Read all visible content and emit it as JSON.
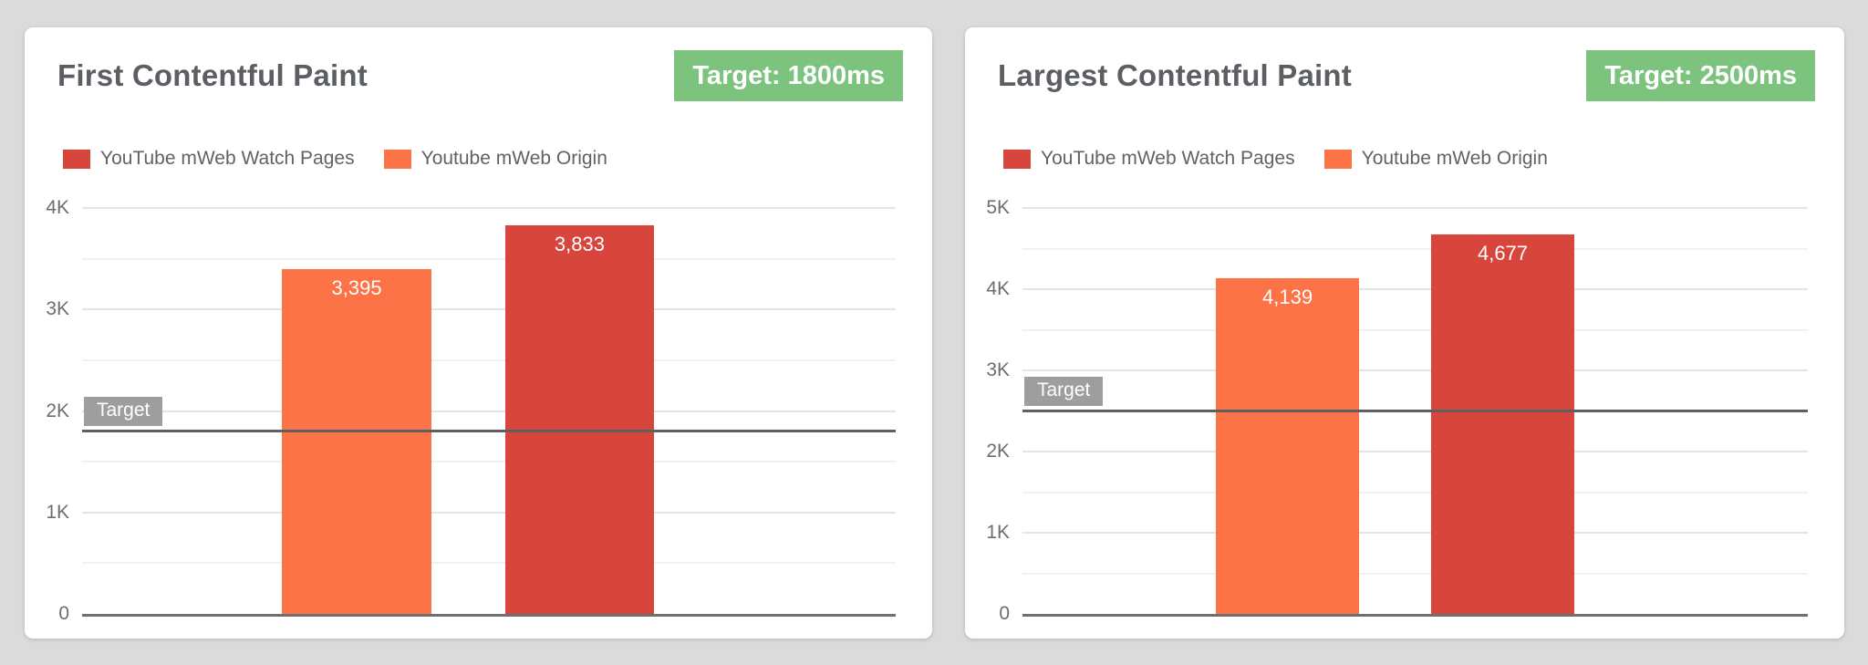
{
  "page": {
    "background_color": "#dbdbdb",
    "card_color": "#ffffff"
  },
  "colors": {
    "watch_pages_red": "#d8453c",
    "origin_orange": "#fb7347",
    "target_badge_green": "#7cc47e",
    "target_chip_gray": "#9e9e9e",
    "target_line_gray": "#5f5f5f"
  },
  "cards": [
    {
      "title": "First Contentful Paint",
      "badge": "Target: 1800ms",
      "legend": [
        {
          "label": "YouTube mWeb Watch Pages",
          "color": "#d8453c"
        },
        {
          "label": "Youtube mWeb Origin",
          "color": "#fb7347"
        }
      ]
    },
    {
      "title": "Largest Contentful Paint",
      "badge": "Target: 2500ms",
      "legend": [
        {
          "label": "YouTube mWeb Watch Pages",
          "color": "#d8453c"
        },
        {
          "label": "Youtube mWeb Origin",
          "color": "#fb7347"
        }
      ]
    }
  ],
  "chart_data": [
    {
      "type": "bar",
      "title": "First Contentful Paint",
      "categories": [
        "Youtube mWeb Origin",
        "YouTube mWeb Watch Pages"
      ],
      "values": [
        3395,
        3833
      ],
      "value_labels": [
        "3,395",
        "3,833"
      ],
      "bar_colors": [
        "#fb7347",
        "#d8453c"
      ],
      "ylim": [
        0,
        4000
      ],
      "yticks": [
        {
          "value": 0,
          "label": "0"
        },
        {
          "value": 1000,
          "label": "1K"
        },
        {
          "value": 2000,
          "label": "2K"
        },
        {
          "value": 3000,
          "label": "3K"
        },
        {
          "value": 4000,
          "label": "4K"
        }
      ],
      "grid_step": 500,
      "grid": true,
      "legend_position": "top",
      "target": {
        "value": 1800,
        "label": "Target",
        "badge": "Target: 1800ms"
      }
    },
    {
      "type": "bar",
      "title": "Largest Contentful Paint",
      "categories": [
        "Youtube mWeb Origin",
        "YouTube mWeb Watch Pages"
      ],
      "values": [
        4139,
        4677
      ],
      "value_labels": [
        "4,139",
        "4,677"
      ],
      "bar_colors": [
        "#fb7347",
        "#d8453c"
      ],
      "ylim": [
        0,
        5000
      ],
      "yticks": [
        {
          "value": 0,
          "label": "0"
        },
        {
          "value": 1000,
          "label": "1K"
        },
        {
          "value": 2000,
          "label": "2K"
        },
        {
          "value": 3000,
          "label": "3K"
        },
        {
          "value": 4000,
          "label": "4K"
        },
        {
          "value": 5000,
          "label": "5K"
        }
      ],
      "grid_step": 500,
      "grid": true,
      "legend_position": "top",
      "target": {
        "value": 2500,
        "label": "Target",
        "badge": "Target: 2500ms"
      }
    }
  ]
}
